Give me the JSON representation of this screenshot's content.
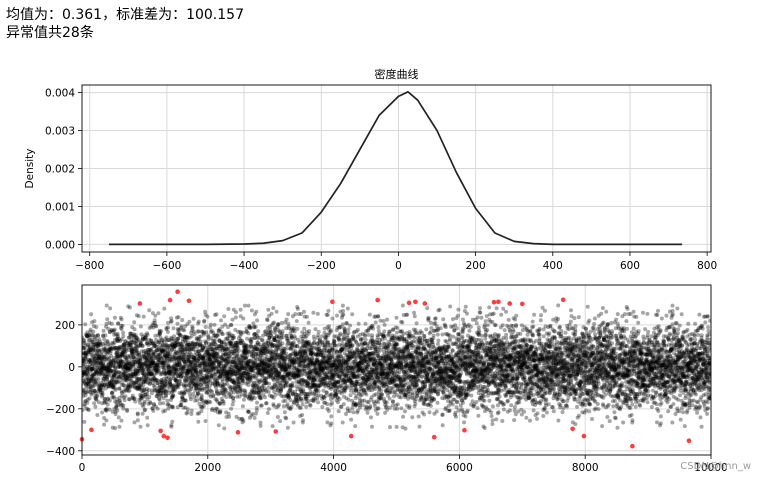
{
  "output": {
    "line1": "均值为：0.361，标准差为：100.157",
    "line2": "异常值共28条"
  },
  "watermark": "CSDN@hnn_w",
  "chart_data": [
    {
      "type": "line",
      "title": "密度曲线",
      "ylabel": "Density",
      "xlabel": "",
      "xlim": [
        -820,
        810
      ],
      "ylim": [
        -0.0002,
        0.0042
      ],
      "grid": true,
      "x_ticks": [
        -800,
        -600,
        -400,
        -200,
        0,
        200,
        400,
        600,
        800
      ],
      "y_ticks": [
        0.0,
        0.001,
        0.002,
        0.003,
        0.004
      ],
      "x_tick_labels": [
        "−800",
        "−600",
        "−400",
        "−200",
        "0",
        "200",
        "400",
        "600",
        "800"
      ],
      "y_tick_labels": [
        "0.000",
        "0.001",
        "0.002",
        "0.003",
        "0.004"
      ],
      "line_color": "#222222",
      "series": [
        {
          "x": [
            -750,
            -500,
            -400,
            -350,
            -300,
            -250,
            -200,
            -150,
            -100,
            -50,
            0,
            25,
            50,
            100,
            150,
            200,
            250,
            300,
            350,
            400,
            500,
            735
          ],
          "y": [
            0.0,
            0.0,
            1e-05,
            3e-05,
            0.0001,
            0.0003,
            0.00085,
            0.0016,
            0.0025,
            0.0034,
            0.0039,
            0.00402,
            0.0038,
            0.003,
            0.0019,
            0.00095,
            0.0003,
            8e-05,
            2e-05,
            0.0,
            0.0,
            0.0
          ]
        }
      ]
    },
    {
      "type": "scatter",
      "xlim": [
        0,
        10000
      ],
      "ylim": [
        -420,
        390
      ],
      "grid": true,
      "x_ticks": [
        0,
        2000,
        4000,
        6000,
        8000,
        10000
      ],
      "y_ticks": [
        -400,
        -200,
        0,
        200
      ],
      "x_tick_labels": [
        "0",
        "2000",
        "4000",
        "6000",
        "8000",
        "10000"
      ],
      "y_tick_labels": [
        "−400",
        "−200",
        "0",
        "200"
      ],
      "normal_points": {
        "count": 9972,
        "mean": 0.361,
        "std": 100.157,
        "color": "#000000",
        "opacity": 0.35
      },
      "outlier_color": "#ff3b3b",
      "outliers": [
        {
          "x": 0,
          "y": -345
        },
        {
          "x": 150,
          "y": -300
        },
        {
          "x": 920,
          "y": 302
        },
        {
          "x": 1250,
          "y": -305
        },
        {
          "x": 1300,
          "y": -330
        },
        {
          "x": 1360,
          "y": -338
        },
        {
          "x": 1400,
          "y": 318
        },
        {
          "x": 1520,
          "y": 358
        },
        {
          "x": 1700,
          "y": 315
        },
        {
          "x": 2480,
          "y": -312
        },
        {
          "x": 3080,
          "y": -308
        },
        {
          "x": 3980,
          "y": 310
        },
        {
          "x": 4280,
          "y": -330
        },
        {
          "x": 4700,
          "y": 318
        },
        {
          "x": 5200,
          "y": 305
        },
        {
          "x": 5300,
          "y": 310
        },
        {
          "x": 5450,
          "y": 302
        },
        {
          "x": 5600,
          "y": -335
        },
        {
          "x": 6080,
          "y": -302
        },
        {
          "x": 6550,
          "y": 308
        },
        {
          "x": 6620,
          "y": 310
        },
        {
          "x": 6800,
          "y": 302
        },
        {
          "x": 7000,
          "y": 300
        },
        {
          "x": 7650,
          "y": 320
        },
        {
          "x": 7800,
          "y": -295
        },
        {
          "x": 7980,
          "y": -330
        },
        {
          "x": 8750,
          "y": -378
        },
        {
          "x": 9650,
          "y": -352
        }
      ]
    }
  ]
}
